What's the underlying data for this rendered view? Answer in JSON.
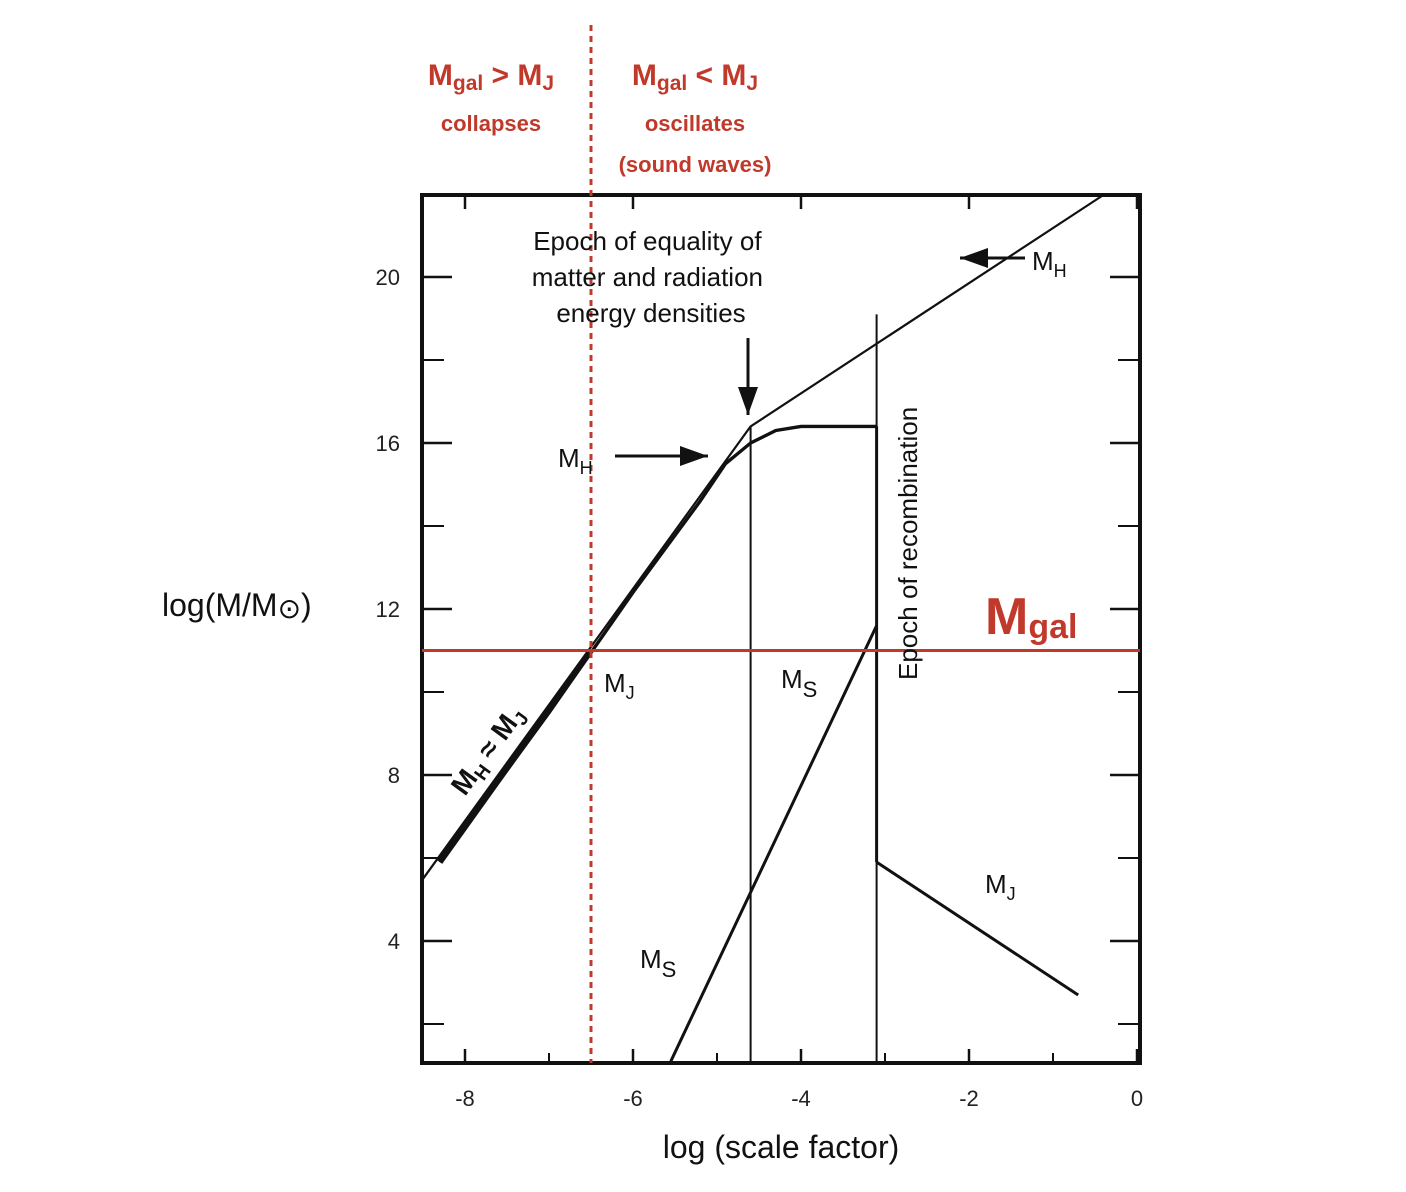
{
  "chart_data": {
    "type": "line",
    "xlabel": "log (scale factor)",
    "ylabel_main": "log(M/M",
    "ylabel_sun": "⊙",
    "ylabel_close": ")",
    "xlim": [
      -8.5,
      0
    ],
    "ylim": [
      1,
      22
    ],
    "xticks": [
      -8,
      -6,
      -4,
      -2,
      0
    ],
    "yticks": [
      4,
      8,
      12,
      16,
      20
    ],
    "eq_epoch_x": -4.6,
    "recomb_x": -3.1,
    "series": [
      {
        "name": "M_H horizon mass",
        "style": "thin",
        "points": [
          [
            -8.5,
            5.5
          ],
          [
            -4.6,
            16.4
          ],
          [
            -0.4,
            22
          ]
        ]
      },
      {
        "name": "M_J before recombination",
        "style": "thick",
        "points": [
          [
            -8.3,
            5.9
          ],
          [
            -7.0,
            9.5
          ],
          [
            -6.0,
            12.4
          ],
          [
            -5.2,
            14.6
          ],
          [
            -4.9,
            15.5
          ],
          [
            -4.6,
            16.0
          ],
          [
            -4.3,
            16.3
          ],
          [
            -4.0,
            16.4
          ],
          [
            -3.1,
            16.4
          ]
        ]
      },
      {
        "name": "M_H ≈ M_J",
        "style": "heavy",
        "points": [
          [
            -8.3,
            5.9
          ],
          [
            -6.5,
            11.0
          ]
        ]
      },
      {
        "name": "M_S",
        "style": "medium",
        "points": [
          [
            -5.55,
            1.1
          ],
          [
            -3.1,
            11.6
          ]
        ]
      },
      {
        "name": "M_J after recombination",
        "style": "medium",
        "points": [
          [
            -3.1,
            5.9
          ],
          [
            -0.7,
            2.7
          ]
        ]
      }
    ],
    "vlines": [
      {
        "name": "equality-line",
        "x": -4.6,
        "y": [
          1,
          16.4
        ]
      },
      {
        "name": "recombination-line",
        "x": -3.1,
        "y": [
          1,
          19.1
        ]
      }
    ],
    "mgal": {
      "label": "M",
      "sub": "gal",
      "y": 11.0
    },
    "divider_x": -6.5,
    "annotations": {
      "equality": [
        "Epoch of equality of",
        "matter and radiation",
        "energy densities"
      ],
      "recombination": "Epoch of recombination",
      "mh_upper": {
        "main": "M",
        "sub": "H"
      },
      "mh_lower": {
        "main": "M",
        "sub": "H"
      },
      "mj_left": {
        "main": "M",
        "sub": "J"
      },
      "ms_mid": {
        "main": "M",
        "sub": "S"
      },
      "ms_low": {
        "main": "M",
        "sub": "S"
      },
      "mj_right": {
        "main": "M",
        "sub": "J"
      },
      "mh_approx_mj": {
        "m1": "M",
        "s1": "H",
        "approx": " ≈ ",
        "m2": "M",
        "s2": "J"
      }
    },
    "regions": {
      "left": {
        "m1": "M",
        "s1": "gal",
        "op": " > ",
        "m2": "M",
        "s2": "J",
        "note": "collapses"
      },
      "right": {
        "m1": "M",
        "s1": "gal",
        "op": " < ",
        "m2": "M",
        "s2": "J",
        "note": "oscillates",
        "note2": "(sound waves)"
      }
    }
  }
}
